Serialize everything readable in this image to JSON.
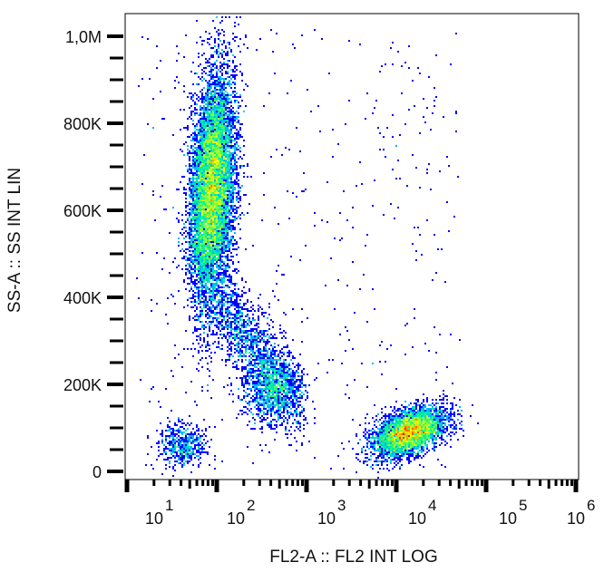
{
  "chart_data": {
    "type": "heatmap",
    "subtype": "flow cytometry density dot plot",
    "xlabel": "FL2-A :: FL2 INT LOG",
    "ylabel": "SS-A :: SS INT LIN",
    "x_scale": "log",
    "xlim": [
      10,
      1000000
    ],
    "x_ticks": [
      {
        "base": "10",
        "exp": "1"
      },
      {
        "base": "10",
        "exp": "2"
      },
      {
        "base": "10",
        "exp": "3"
      },
      {
        "base": "10",
        "exp": "4"
      },
      {
        "base": "10",
        "exp": "5"
      },
      {
        "base": "10",
        "exp": "6"
      }
    ],
    "y_scale": "linear",
    "ylim": [
      0,
      1000000
    ],
    "y_ticks": [
      {
        "value": 0,
        "label": "0"
      },
      {
        "value": 200000,
        "label": "200K"
      },
      {
        "value": 400000,
        "label": "400K"
      },
      {
        "value": 600000,
        "label": "600K"
      },
      {
        "value": 800000,
        "label": "800K"
      },
      {
        "value": 1000000,
        "label": "1,0M"
      }
    ],
    "colormap": [
      "#0000ff",
      "#00c0ff",
      "#00ff80",
      "#ffff00",
      "#ff0000"
    ],
    "populations": [
      {
        "x_center": 89,
        "x_spread_decades": 0.12,
        "y_center": 650000,
        "y_spread": 130000,
        "events": 9000
      },
      {
        "x_center": 400,
        "x_spread_decades": 0.15,
        "y_center": 190000,
        "y_spread": 40000,
        "events": 900
      },
      {
        "x_center": 40,
        "x_spread_decades": 0.14,
        "y_center": 60000,
        "y_spread": 25000,
        "events": 500
      },
      {
        "x_center": 14000,
        "x_spread_decades": 0.2,
        "y_center": 90000,
        "y_spread": 25000,
        "events": 4000
      }
    ]
  }
}
